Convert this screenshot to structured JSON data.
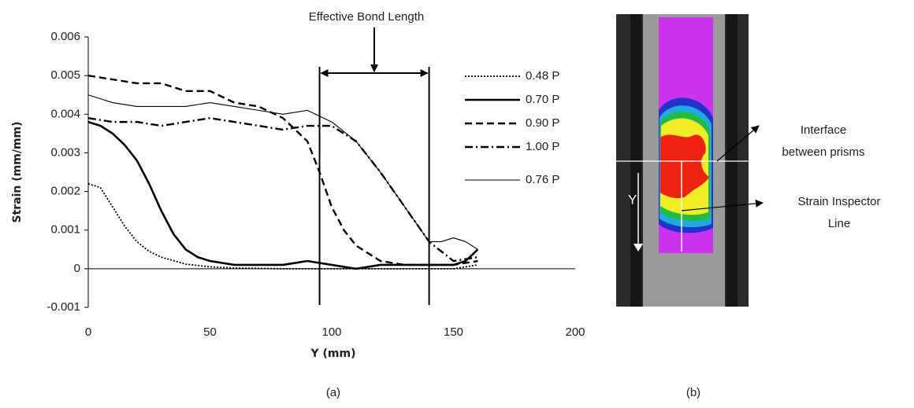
{
  "chart_data": {
    "type": "line",
    "title": "Effective Bond Length",
    "x_label": "Y (mm)",
    "y_label": "Strain (mm/mm)",
    "xlim": [
      0,
      200
    ],
    "xticks": [
      0,
      50,
      100,
      150,
      200
    ],
    "ylim": [
      -0.001,
      0.006
    ],
    "yticks": [
      -0.001,
      0,
      0.001,
      0.002,
      0.003,
      0.004,
      0.005,
      0.006
    ],
    "grid": false,
    "legend": "right",
    "bond_region": [
      95,
      140
    ],
    "series": [
      {
        "name": "0.48 P",
        "color": "#000000",
        "dash": "dotted",
        "width": 1.8,
        "x": [
          0,
          5,
          10,
          15,
          20,
          25,
          30,
          40,
          50,
          60,
          80,
          100,
          120,
          140,
          150,
          160
        ],
        "values": [
          0.0022,
          0.0021,
          0.0016,
          0.0011,
          0.0007,
          0.00045,
          0.0003,
          0.00012,
          5e-05,
          2e-05,
          0,
          0,
          0,
          0,
          0,
          0.0001
        ]
      },
      {
        "name": "0.70 P",
        "color": "#000000",
        "dash": "solid",
        "width": 2.6,
        "x": [
          0,
          5,
          10,
          15,
          20,
          25,
          30,
          35,
          40,
          45,
          50,
          60,
          70,
          80,
          90,
          95,
          100,
          110,
          120,
          130,
          140,
          150,
          155,
          160
        ],
        "values": [
          0.0038,
          0.0037,
          0.0035,
          0.0032,
          0.0028,
          0.0022,
          0.0015,
          0.0009,
          0.0005,
          0.0003,
          0.0002,
          0.0001,
          0.0001,
          0.0001,
          0.0002,
          0.00015,
          0.0001,
          0,
          0.0001,
          0.0001,
          0.0001,
          0.0001,
          0.0002,
          0.0005
        ]
      },
      {
        "name": "0.90 P",
        "color": "#000000",
        "dash": "dashed",
        "width": 2.4,
        "x": [
          0,
          10,
          20,
          30,
          40,
          50,
          60,
          70,
          80,
          90,
          95,
          100,
          105,
          110,
          120,
          130,
          140,
          150,
          160
        ],
        "values": [
          0.005,
          0.0049,
          0.0048,
          0.0048,
          0.0046,
          0.0046,
          0.0043,
          0.0042,
          0.0039,
          0.0033,
          0.0025,
          0.0016,
          0.001,
          0.0006,
          0.0002,
          0.0001,
          0.0001,
          0.0001,
          0.0002
        ]
      },
      {
        "name": "1.00 P",
        "color": "#000000",
        "dash": "dashdot",
        "width": 2.4,
        "x": [
          0,
          10,
          20,
          30,
          40,
          50,
          60,
          70,
          80,
          90,
          100,
          110,
          120,
          130,
          140,
          150,
          160
        ],
        "values": [
          0.0039,
          0.0038,
          0.0038,
          0.0037,
          0.0038,
          0.0039,
          0.0038,
          0.0037,
          0.0036,
          0.0037,
          0.0037,
          0.0033,
          0.0025,
          0.0016,
          0.0007,
          0.0002,
          0.0003
        ]
      },
      {
        "name": "0.76 P",
        "color": "#000000",
        "dash": "solid",
        "width": 1.1,
        "x": [
          0,
          5,
          10,
          20,
          30,
          40,
          50,
          60,
          70,
          80,
          90,
          100,
          110,
          120,
          130,
          140,
          145,
          150,
          155,
          160
        ],
        "values": [
          0.0045,
          0.0044,
          0.0043,
          0.0042,
          0.0042,
          0.0042,
          0.0043,
          0.0042,
          0.0041,
          0.004,
          0.0041,
          0.0038,
          0.0033,
          0.0025,
          0.0016,
          0.0007,
          0.0007,
          0.0008,
          0.0007,
          0.0005
        ]
      }
    ]
  },
  "captions": [
    "(a)",
    "(b)"
  ],
  "image_labels": {
    "axis": "Y",
    "interface": [
      "Interface",
      "between prisms"
    ],
    "inspector": [
      "Strain Inspector",
      "Line"
    ]
  }
}
